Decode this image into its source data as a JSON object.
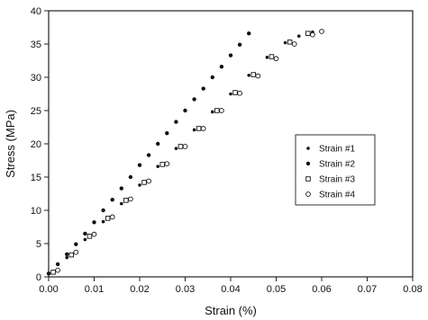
{
  "chart_data": {
    "type": "scatter",
    "title": "",
    "xlabel": "Strain (%)",
    "ylabel": "Stress (MPa)",
    "xlim": [
      0.0,
      0.08
    ],
    "ylim": [
      0,
      40
    ],
    "x_ticks": [
      "0.00",
      "0.01",
      "0.02",
      "0.03",
      "0.04",
      "0.05",
      "0.06",
      "0.07",
      "0.08"
    ],
    "y_ticks": [
      "0",
      "5",
      "10",
      "15",
      "20",
      "25",
      "30",
      "35",
      "40"
    ],
    "grid": false,
    "legend_position": "right",
    "series": [
      {
        "name": "Strain #1",
        "marker": "filled-circle-small",
        "color": "#111111",
        "points": [
          [
            0.001,
            0.6
          ],
          [
            0.004,
            2.9
          ],
          [
            0.008,
            5.6
          ],
          [
            0.012,
            8.3
          ],
          [
            0.016,
            11.0
          ],
          [
            0.02,
            13.8
          ],
          [
            0.024,
            16.6
          ],
          [
            0.028,
            19.3
          ],
          [
            0.032,
            22.1
          ],
          [
            0.036,
            24.8
          ],
          [
            0.04,
            27.5
          ],
          [
            0.044,
            30.3
          ],
          [
            0.048,
            33.0
          ],
          [
            0.052,
            35.2
          ],
          [
            0.055,
            36.2
          ],
          [
            0.058,
            36.8
          ]
        ]
      },
      {
        "name": "Strain #2",
        "marker": "filled-circle",
        "color": "#111111",
        "points": [
          [
            0.0,
            0.5
          ],
          [
            0.002,
            1.9
          ],
          [
            0.004,
            3.4
          ],
          [
            0.006,
            4.9
          ],
          [
            0.008,
            6.5
          ],
          [
            0.01,
            8.2
          ],
          [
            0.012,
            10.0
          ],
          [
            0.014,
            11.6
          ],
          [
            0.016,
            13.3
          ],
          [
            0.018,
            15.0
          ],
          [
            0.02,
            16.8
          ],
          [
            0.022,
            18.3
          ],
          [
            0.024,
            20.0
          ],
          [
            0.026,
            21.6
          ],
          [
            0.028,
            23.3
          ],
          [
            0.03,
            25.0
          ],
          [
            0.032,
            26.7
          ],
          [
            0.034,
            28.3
          ],
          [
            0.036,
            30.0
          ],
          [
            0.038,
            31.6
          ],
          [
            0.04,
            33.3
          ],
          [
            0.042,
            34.9
          ],
          [
            0.044,
            36.6
          ]
        ]
      },
      {
        "name": "Strain #3",
        "marker": "open-square",
        "color": "#111111",
        "points": [
          [
            0.001,
            0.7
          ],
          [
            0.005,
            3.3
          ],
          [
            0.009,
            6.1
          ],
          [
            0.013,
            8.8
          ],
          [
            0.017,
            11.5
          ],
          [
            0.021,
            14.2
          ],
          [
            0.025,
            16.9
          ],
          [
            0.029,
            19.6
          ],
          [
            0.033,
            22.3
          ],
          [
            0.037,
            25.0
          ],
          [
            0.041,
            27.7
          ],
          [
            0.045,
            30.4
          ],
          [
            0.049,
            33.1
          ],
          [
            0.053,
            35.3
          ],
          [
            0.057,
            36.6
          ]
        ]
      },
      {
        "name": "Strain #4",
        "marker": "open-circle",
        "color": "#111111",
        "points": [
          [
            0.002,
            1.0
          ],
          [
            0.006,
            3.7
          ],
          [
            0.01,
            6.4
          ],
          [
            0.014,
            9.0
          ],
          [
            0.018,
            11.7
          ],
          [
            0.022,
            14.4
          ],
          [
            0.026,
            17.0
          ],
          [
            0.03,
            19.6
          ],
          [
            0.034,
            22.3
          ],
          [
            0.038,
            25.0
          ],
          [
            0.042,
            27.6
          ],
          [
            0.046,
            30.2
          ],
          [
            0.05,
            32.8
          ],
          [
            0.054,
            35.0
          ],
          [
            0.058,
            36.4
          ],
          [
            0.06,
            36.9
          ]
        ]
      }
    ]
  }
}
